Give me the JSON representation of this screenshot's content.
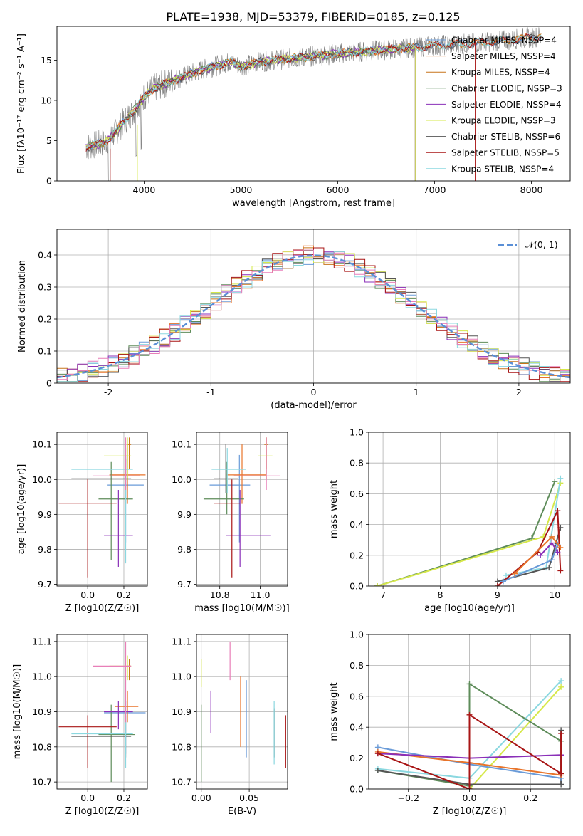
{
  "figure_title": "PLATE=1938, MJD=53379, FIBERID=0185, z=0.125",
  "series_styles": [
    {
      "name": "Chabrier MILES",
      "nssp": "4",
      "color": "#6a9bd8"
    },
    {
      "name": "Salpeter MILES",
      "nssp": "4",
      "color": "#e8742a"
    },
    {
      "name": "Kroupa MILES",
      "nssp": "4",
      "color": "#c7741a"
    },
    {
      "name": "Chabrier ELODIE",
      "nssp": "3",
      "color": "#5e8c5a"
    },
    {
      "name": "Salpeter ELODIE",
      "nssp": "4",
      "color": "#8a2fb8"
    },
    {
      "name": "Kroupa ELODIE",
      "nssp": "3",
      "color": "#d6e84a"
    },
    {
      "name": "Chabrier STELIB",
      "nssp": "6",
      "color": "#555555"
    },
    {
      "name": "Salpeter STELIB",
      "nssp": "5",
      "color": "#a81515"
    },
    {
      "name": "Kroupa STELIB",
      "nssp": "4",
      "color": "#8bd8e0"
    }
  ],
  "extra_colors": {
    "pink": "#e87fb8",
    "data": "#7f7f7f",
    "gauss": "#5a8fd6"
  },
  "chart_data": [
    {
      "id": "spectrum",
      "type": "line",
      "title": "PLATE=1938, MJD=53379, FIBERID=0185, z=0.125",
      "xlabel": "wavelength [Angstrom, rest frame]",
      "ylabel": "Flux [fλ10⁻¹⁷ erg cm⁻² s⁻¹ A⁻¹]",
      "xlim": [
        3100,
        8400
      ],
      "ylim": [
        0,
        19.2
      ],
      "xticks": [
        4000,
        5000,
        6000,
        7000,
        8000
      ],
      "yticks": [
        0,
        5,
        10,
        15
      ],
      "legend_placement": "upper right",
      "legend_entries": [
        "Chabrier MILES, NSSP=4",
        "Salpeter MILES, NSSP=4",
        "Kroupa MILES, NSSP=4",
        "Chabrier ELODIE, NSSP=3",
        "Salpeter ELODIE, NSSP=4",
        "Kroupa ELODIE, NSSP=3",
        "Chabrier STELIB, NSSP=6",
        "Salpeter STELIB, NSSP=5",
        "Kroupa STELIB, NSSP=4"
      ],
      "continuum": {
        "x": [
          3400,
          3600,
          3700,
          3800,
          3900,
          4000,
          4100,
          4300,
          4600,
          4900,
          5000,
          5200,
          5500,
          6000,
          6500,
          7000,
          7500,
          8000,
          8100
        ],
        "y": [
          4.2,
          4.8,
          6.0,
          7.5,
          8.8,
          10.5,
          11.5,
          12.5,
          13.8,
          14.8,
          14.2,
          14.8,
          15.2,
          15.8,
          16.3,
          16.8,
          17.2,
          17.8,
          18.0
        ]
      },
      "elodie_cutoff": {
        "start": 6800,
        "end": 7420
      },
      "grid": false
    },
    {
      "id": "residuals",
      "type": "step",
      "xlabel": "(data-model)/error",
      "ylabel": "Normed distribution",
      "xlim": [
        -2.5,
        2.5
      ],
      "ylim": [
        0,
        0.48
      ],
      "xticks": [
        -2,
        -1,
        0,
        1,
        2
      ],
      "yticks": [
        0.0,
        0.1,
        0.2,
        0.3,
        0.4
      ],
      "legend_entries": [
        "𝒩(0, 1)"
      ],
      "legend_placement": "upper right",
      "gauss_mean": 0,
      "gauss_sigma": 1,
      "grid": true
    },
    {
      "id": "age-vs-Z",
      "type": "errorbar",
      "xlabel": "Z [log10(Z/Z☉)]",
      "ylabel": "age  [log10(age/yr)]",
      "xlim": [
        -0.17,
        0.33
      ],
      "ylim": [
        9.695,
        10.135
      ],
      "xticks": [
        0.0,
        0.2
      ],
      "xtick_labels": [
        "0.0",
        "0.2"
      ],
      "yticks": [
        9.7,
        9.8,
        9.9,
        10.0,
        10.1
      ],
      "ytick_labels": [
        "9.7",
        "9.8",
        "9.9",
        "10.0",
        "10.1"
      ],
      "points": [
        {
          "c": 0,
          "x": 0.21,
          "y": 9.984,
          "xe": [
            0.11,
            0.31
          ],
          "ye": [
            9.82,
            10.07
          ]
        },
        {
          "c": 1,
          "x": 0.22,
          "y": 10.013,
          "xe": [
            0.12,
            0.32
          ],
          "ye": [
            9.93,
            10.1
          ]
        },
        {
          "c": 2,
          "x": 0.23,
          "y": 10.1,
          "xe": [
            0.22,
            0.24
          ],
          "ye": [
            10.03,
            10.12
          ]
        },
        {
          "c": 3,
          "x": 0.13,
          "y": 9.944,
          "xe": [
            0.06,
            0.25
          ],
          "ye": [
            9.77,
            10.05
          ]
        },
        {
          "c": 4,
          "x": 0.17,
          "y": 9.84,
          "xe": [
            0.09,
            0.25
          ],
          "ye": [
            9.75,
            9.97
          ]
        },
        {
          "c": 5,
          "x": 0.22,
          "y": 10.067,
          "xe": [
            0.09,
            0.24
          ],
          "ye": [
            10.0,
            10.12
          ]
        },
        {
          "c": 6,
          "x": 0.21,
          "y": 10.002,
          "xe": [
            -0.09,
            0.24
          ],
          "ye": [
            9.93,
            10.06
          ]
        },
        {
          "c": 7,
          "x": 0.0,
          "y": 9.932,
          "xe": [
            -0.16,
            0.16
          ],
          "ye": [
            9.72,
            10.0
          ]
        },
        {
          "c": 8,
          "x": 0.21,
          "y": 10.029,
          "xe": [
            -0.09,
            0.25
          ],
          "ye": [
            9.76,
            10.09
          ]
        },
        {
          "c": "pink",
          "x": 0.21,
          "y": 10.01,
          "xe": [
            0.03,
            0.29
          ],
          "ye": [
            9.97,
            10.12
          ]
        }
      ]
    },
    {
      "id": "age-vs-mass",
      "type": "errorbar",
      "xlabel": "mass [log10(M/M☉)]",
      "xlim": [
        10.685,
        11.135
      ],
      "ylim": [
        9.695,
        10.135
      ],
      "xticks": [
        10.8,
        11.0
      ],
      "xtick_labels": [
        "10.8",
        "11.0"
      ],
      "yticks": [
        9.7,
        9.8,
        9.9,
        10.0,
        10.1
      ],
      "ytick_labels": [
        "9.7",
        "9.8",
        "9.9",
        "10.0",
        "10.1"
      ],
      "points": [
        {
          "c": 0,
          "x": 10.897,
          "y": 9.984,
          "xe": [
            10.75,
            10.95
          ],
          "ye": [
            9.82,
            10.07
          ]
        },
        {
          "c": 1,
          "x": 10.91,
          "y": 10.013,
          "xe": [
            10.83,
            11.03
          ],
          "ye": [
            9.93,
            10.1
          ]
        },
        {
          "c": 2,
          "x": 11.03,
          "y": 10.1,
          "xe": [
            11.02,
            11.04
          ],
          "ye": [
            10.03,
            10.12
          ]
        },
        {
          "c": 3,
          "x": 10.835,
          "y": 9.944,
          "xe": [
            10.72,
            10.92
          ],
          "ye": [
            9.9,
            10.05
          ]
        },
        {
          "c": 4,
          "x": 10.9,
          "y": 9.84,
          "xe": [
            10.83,
            11.05
          ],
          "ye": [
            9.75,
            9.97
          ]
        },
        {
          "c": 5,
          "x": 11.03,
          "y": 10.067,
          "xe": [
            10.99,
            11.06
          ],
          "ye": [
            10.0,
            10.12
          ]
        },
        {
          "c": 6,
          "x": 10.83,
          "y": 10.002,
          "xe": [
            10.77,
            10.89
          ],
          "ye": [
            9.96,
            10.1
          ]
        },
        {
          "c": 7,
          "x": 10.86,
          "y": 9.932,
          "xe": [
            10.77,
            10.9
          ],
          "ye": [
            9.72,
            10.0
          ]
        },
        {
          "c": 8,
          "x": 10.837,
          "y": 10.029,
          "xe": [
            10.76,
            10.93
          ],
          "ye": [
            9.96,
            10.09
          ]
        },
        {
          "c": "pink",
          "x": 11.03,
          "y": 10.01,
          "xe": [
            10.87,
            11.1
          ],
          "ye": [
            9.97,
            10.12
          ]
        }
      ]
    },
    {
      "id": "mass-weight-vs-age",
      "type": "line",
      "xlabel": "age  [log10(age/yr)]",
      "ylabel": "mass weight",
      "xlim": [
        6.75,
        10.27
      ],
      "ylim": [
        0,
        1.0
      ],
      "xticks": [
        7,
        8,
        9,
        10
      ],
      "xtick_labels": [
        "7",
        "8",
        "9",
        "10"
      ],
      "yticks": [
        0.0,
        0.2,
        0.4,
        0.6,
        0.8,
        1.0
      ],
      "ytick_labels": [
        "0.0",
        "0.2",
        "0.4",
        "0.6",
        "0.8",
        "1.0"
      ],
      "grid": true,
      "series": [
        {
          "c": 3,
          "x": [
            6.9,
            9.6,
            10.0
          ],
          "y": [
            0.0,
            0.31,
            0.68
          ]
        },
        {
          "c": 5,
          "x": [
            6.9,
            9.8,
            10.1
          ],
          "y": [
            0.0,
            0.32,
            0.67
          ]
        },
        {
          "c": 8,
          "x": [
            9.15,
            9.85,
            10.1
          ],
          "y": [
            0.07,
            0.12,
            0.7
          ]
        },
        {
          "c": 6,
          "x": [
            9.0,
            9.9,
            10.1
          ],
          "y": [
            0.03,
            0.12,
            0.38
          ]
        },
        {
          "c": 7,
          "x": [
            9.0,
            9.7,
            10.05,
            10.1
          ],
          "y": [
            0.0,
            0.22,
            0.49,
            0.1
          ]
        },
        {
          "c": 4,
          "x": [
            9.75,
            9.95,
            10.05
          ],
          "y": [
            0.2,
            0.28,
            0.22
          ]
        },
        {
          "c": 0,
          "x": [
            9.1,
            9.95,
            10.05
          ],
          "y": [
            0.03,
            0.17,
            0.27
          ]
        },
        {
          "c": 1,
          "x": [
            9.3,
            9.95,
            10.1
          ],
          "y": [
            0.08,
            0.32,
            0.25
          ]
        }
      ]
    },
    {
      "id": "mass-vs-Z",
      "type": "errorbar",
      "xlabel": "Z [log10(Z/Z☉)]",
      "ylabel": "mass [log10(M/M☉)]",
      "xlim": [
        -0.17,
        0.33
      ],
      "ylim": [
        10.68,
        11.12
      ],
      "xticks": [
        0.0,
        0.2
      ],
      "xtick_labels": [
        "0.0",
        "0.2"
      ],
      "yticks": [
        10.7,
        10.8,
        10.9,
        11.0,
        11.1
      ],
      "ytick_labels": [
        "10.7",
        "10.8",
        "10.9",
        "11.0",
        "11.1"
      ],
      "points": [
        {
          "c": 0,
          "x": 0.21,
          "y": 10.897,
          "xe": [
            0.09,
            0.32
          ],
          "ye": [
            10.78,
            10.93
          ]
        },
        {
          "c": 1,
          "x": 0.22,
          "y": 10.915,
          "xe": [
            0.15,
            0.28
          ],
          "ye": [
            10.87,
            10.96
          ]
        },
        {
          "c": 2,
          "x": 0.23,
          "y": 11.03,
          "xe": [
            0.22,
            0.24
          ],
          "ye": [
            10.99,
            11.05
          ]
        },
        {
          "c": 3,
          "x": 0.13,
          "y": 10.835,
          "xe": [
            0.06,
            0.26
          ],
          "ye": [
            10.7,
            10.92
          ]
        },
        {
          "c": 4,
          "x": 0.17,
          "y": 10.9,
          "xe": [
            0.09,
            0.25
          ],
          "ye": [
            10.85,
            10.93
          ]
        },
        {
          "c": 5,
          "x": 0.22,
          "y": 11.03,
          "xe": [
            0.12,
            0.24
          ],
          "ye": [
            10.99,
            11.06
          ]
        },
        {
          "c": 6,
          "x": 0.21,
          "y": 10.83,
          "xe": [
            -0.09,
            0.24
          ],
          "ye": [
            10.77,
            10.89
          ]
        },
        {
          "c": 7,
          "x": 0.0,
          "y": 10.857,
          "xe": [
            -0.16,
            0.16
          ],
          "ye": [
            10.74,
            10.89
          ]
        },
        {
          "c": 8,
          "x": 0.21,
          "y": 10.837,
          "xe": [
            -0.09,
            0.25
          ],
          "ye": [
            10.74,
            10.93
          ]
        },
        {
          "c": "pink",
          "x": 0.21,
          "y": 11.03,
          "xe": [
            0.03,
            0.24
          ],
          "ye": [
            10.87,
            11.1
          ]
        }
      ]
    },
    {
      "id": "mass-vs-EBV",
      "type": "errorbar",
      "xlabel": "E(B-V)",
      "xlim": [
        -0.005,
        0.09
      ],
      "ylim": [
        10.68,
        11.12
      ],
      "xticks": [
        0.0,
        0.05
      ],
      "xtick_labels": [
        "0.00",
        "0.05"
      ],
      "yticks": [
        10.7,
        10.8,
        10.9,
        11.0,
        11.1
      ],
      "ytick_labels": [
        "10.7",
        "10.8",
        "10.9",
        "11.0",
        "11.1"
      ],
      "points": [
        {
          "c": 0,
          "x": 0.047,
          "y": 10.897,
          "xe": null,
          "ye": [
            10.77,
            10.99
          ]
        },
        {
          "c": 1,
          "x": 0.041,
          "y": 10.915,
          "xe": null,
          "ye": [
            10.8,
            11.0
          ]
        },
        {
          "c": 3,
          "x": 0.0,
          "y": 10.835,
          "xe": null,
          "ye": [
            10.7,
            10.92
          ]
        },
        {
          "c": 4,
          "x": 0.01,
          "y": 10.9,
          "xe": null,
          "ye": [
            10.84,
            10.96
          ]
        },
        {
          "c": 5,
          "x": 0.0,
          "y": 11.03,
          "xe": null,
          "ye": [
            10.97,
            11.05
          ]
        },
        {
          "c": 6,
          "x": 0.076,
          "y": 10.83,
          "xe": null,
          "ye": [
            10.77,
            10.91
          ]
        },
        {
          "c": 7,
          "x": 0.088,
          "y": 10.857,
          "xe": null,
          "ye": [
            10.74,
            10.89
          ]
        },
        {
          "c": 8,
          "x": 0.076,
          "y": 10.837,
          "xe": null,
          "ye": [
            10.75,
            10.93
          ]
        },
        {
          "c": "pink",
          "x": 0.03,
          "y": 11.03,
          "xe": null,
          "ye": [
            10.99,
            11.1
          ]
        }
      ]
    },
    {
      "id": "mass-weight-vs-Z",
      "type": "line",
      "xlabel": "Z [log10(Z/Z☉)]",
      "ylabel": "mass weight",
      "xlim": [
        -0.33,
        0.33
      ],
      "ylim": [
        0,
        1.0
      ],
      "xticks": [
        -0.2,
        0.0,
        0.2
      ],
      "xtick_labels": [
        "−0.2",
        "0.0",
        "0.2"
      ],
      "yticks": [
        0.0,
        0.2,
        0.4,
        0.6,
        0.8,
        1.0
      ],
      "ytick_labels": [
        "0.0",
        "0.2",
        "0.4",
        "0.6",
        "0.8",
        "1.0"
      ],
      "grid": true,
      "series": [
        {
          "c": 8,
          "x": [
            -0.3,
            0.0,
            0.3
          ],
          "y": [
            0.13,
            0.07,
            0.7
          ]
        },
        {
          "c": 5,
          "x": [
            0.0,
            0.3
          ],
          "y": [
            0.0,
            0.66
          ]
        },
        {
          "c": 3,
          "x": [
            -0.3,
            0.0,
            0.0,
            0.3
          ],
          "y": [
            0.12,
            0.02,
            0.68,
            0.31
          ]
        },
        {
          "c": 6,
          "x": [
            -0.3,
            0.0,
            0.3,
            0.3
          ],
          "y": [
            0.12,
            0.03,
            0.03,
            0.38
          ]
        },
        {
          "c": 0,
          "x": [
            -0.3,
            0.0,
            0.3
          ],
          "y": [
            0.27,
            0.16,
            0.07
          ]
        },
        {
          "c": 1,
          "x": [
            -0.3,
            0.0,
            0.3
          ],
          "y": [
            0.24,
            0.17,
            0.09
          ]
        },
        {
          "c": 4,
          "x": [
            -0.3,
            0.0,
            0.3
          ],
          "y": [
            0.23,
            0.2,
            0.22
          ]
        },
        {
          "c": 7,
          "x": [
            -0.3,
            0.0,
            0.0,
            0.3,
            0.3
          ],
          "y": [
            0.23,
            0.0,
            0.48,
            0.1,
            0.36
          ]
        }
      ]
    }
  ]
}
